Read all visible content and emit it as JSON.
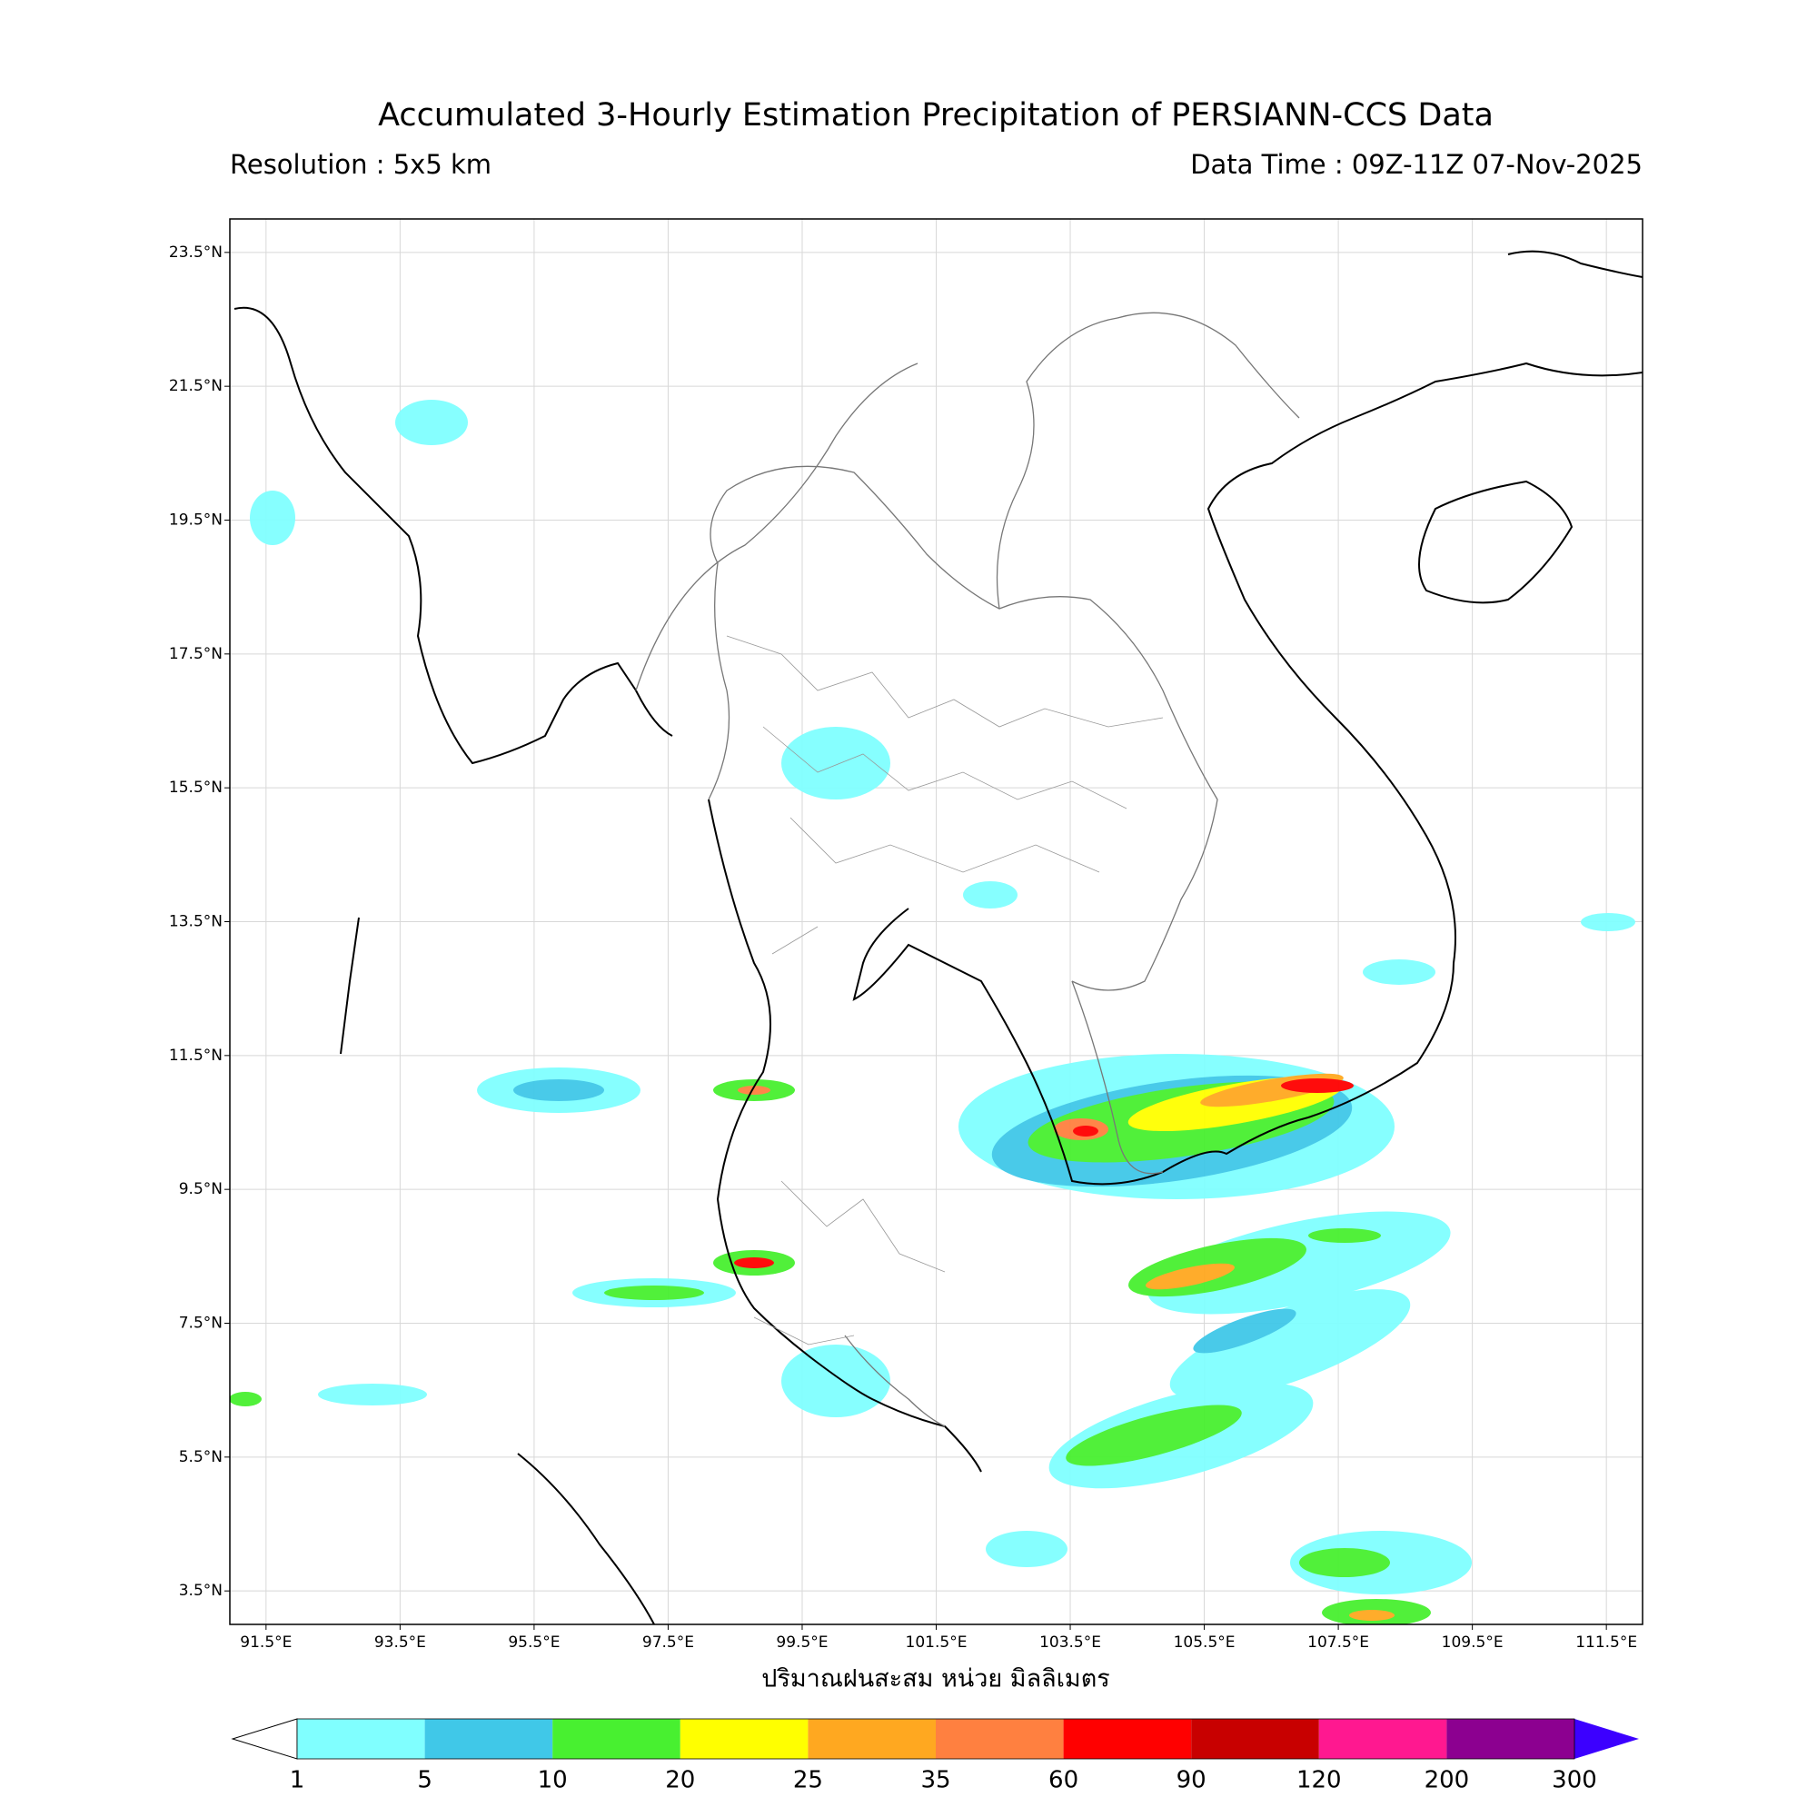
{
  "header": {
    "title": "Accumulated 3-Hourly Estimation Precipitation of PERSIANN-CCS Data",
    "resolution": "Resolution : 5x5 km",
    "data_time": "Data Time : 09Z-11Z 07-Nov-2025"
  },
  "map": {
    "xlim": [
      90.96,
      112.04
    ],
    "ylim": [
      3.0,
      24.0
    ],
    "grid": true,
    "xticks": [
      {
        "value": 91.5,
        "label": "91.5°E"
      },
      {
        "value": 93.5,
        "label": "93.5°E"
      },
      {
        "value": 95.5,
        "label": "95.5°E"
      },
      {
        "value": 97.5,
        "label": "97.5°E"
      },
      {
        "value": 99.5,
        "label": "99.5°E"
      },
      {
        "value": 101.5,
        "label": "101.5°E"
      },
      {
        "value": 103.5,
        "label": "103.5°E"
      },
      {
        "value": 105.5,
        "label": "105.5°E"
      },
      {
        "value": 107.5,
        "label": "107.5°E"
      },
      {
        "value": 109.5,
        "label": "109.5°E"
      },
      {
        "value": 111.5,
        "label": "111.5°E"
      }
    ],
    "yticks": [
      {
        "value": 23.5,
        "label": "23.5°N"
      },
      {
        "value": 21.5,
        "label": "21.5°N"
      },
      {
        "value": 19.5,
        "label": "19.5°N"
      },
      {
        "value": 17.5,
        "label": "17.5°N"
      },
      {
        "value": 15.5,
        "label": "15.5°N"
      },
      {
        "value": 13.5,
        "label": "13.5°N"
      },
      {
        "value": 11.5,
        "label": "11.5°N"
      },
      {
        "value": 9.5,
        "label": "9.5°N"
      },
      {
        "value": 7.5,
        "label": "7.5°N"
      },
      {
        "value": 5.5,
        "label": "5.5°N"
      },
      {
        "value": 3.5,
        "label": "3.5°N"
      }
    ],
    "xlabel": "ปริมาณฝนสะสม หน่วย มิลลิเมตร"
  },
  "colorbar": {
    "levels": [
      1,
      5,
      10,
      20,
      25,
      35,
      60,
      90,
      120,
      200,
      300
    ],
    "colors": [
      "#80ffff",
      "#40c8e8",
      "#48f030",
      "#ffff00",
      "#ffa820",
      "#ff8040",
      "#ff0000",
      "#c80000",
      "#ff1890",
      "#8c0090"
    ],
    "under_color": "#ffffff",
    "over_color": "#3c00ff"
  }
}
